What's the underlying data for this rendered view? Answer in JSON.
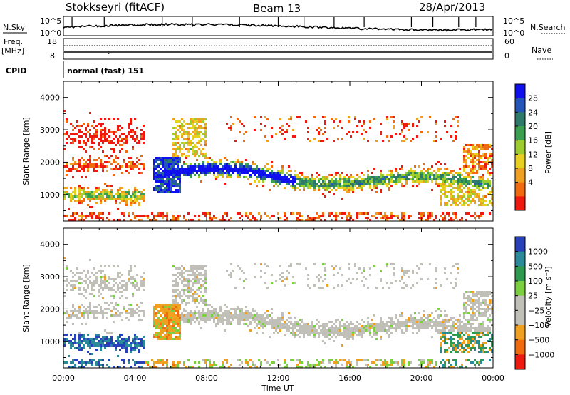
{
  "header": {
    "station": "Stokkseyri (fitACF)",
    "beam": "Beam 13",
    "date": "28/Apr/2013"
  },
  "noise_panel": {
    "left_label": "N.Sky",
    "right_label": "N.Search",
    "left_ticks": [
      "10^5",
      "10^0"
    ],
    "right_ticks": [
      "10^5",
      "10^0"
    ]
  },
  "freq_panel": {
    "left_label_top": "Freq.",
    "left_label_unit": "[MHz]",
    "right_label": "Nave",
    "left_ticks": [
      "18",
      "8"
    ],
    "right_ticks": [
      "60",
      "0"
    ]
  },
  "cpid": {
    "label": "CPID",
    "mode": "normal (fast) 151"
  },
  "x_axis": {
    "label": "Time UT",
    "ticks": [
      "00:00",
      "04:00",
      "08:00",
      "12:00",
      "16:00",
      "20:00",
      "00:00"
    ]
  },
  "chart_data": [
    {
      "type": "heatmap",
      "name": "Power",
      "ylabel": "Slant Range [km]",
      "xlabel": "Time UT",
      "x_range_hours": [
        0,
        24
      ],
      "ylim_km": [
        180,
        4500
      ],
      "y_ticks": [
        "1000",
        "2000",
        "3000",
        "4000"
      ],
      "colorbar": {
        "label": "Power [dB]",
        "ticks": [
          "28",
          "24",
          "20",
          "16",
          "12",
          "8",
          "4"
        ],
        "colors": [
          "#1010ee",
          "#2455b8",
          "#2e7a6a",
          "#3aa050",
          "#9ccc2e",
          "#e8d020",
          "#f0a020",
          "#f06a10",
          "#ee1a10"
        ]
      }
    },
    {
      "type": "heatmap",
      "name": "Velocity",
      "ylabel": "Slant Range [km]",
      "xlabel": "Time UT",
      "x_range_hours": [
        0,
        24
      ],
      "ylim_km": [
        180,
        4500
      ],
      "y_ticks": [
        "1000",
        "2000",
        "3000",
        "4000"
      ],
      "colorbar": {
        "label": "Velocity [m s⁻¹]",
        "ticks": [
          "1000",
          "500",
          "100",
          "25",
          "−25",
          "−100",
          "−500",
          "−1000"
        ],
        "colors": [
          "#2840b8",
          "#2a8a9a",
          "#2e9a50",
          "#7cd040",
          "#c0c0b8",
          "#c0c0b8",
          "#f0a020",
          "#f06a10",
          "#ee1a10"
        ]
      }
    }
  ]
}
